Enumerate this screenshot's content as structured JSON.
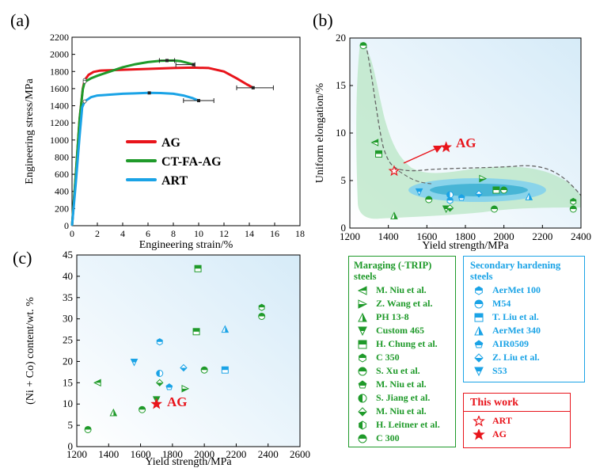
{
  "colors": {
    "red": "#e8141b",
    "green": "#1f9a2a",
    "blue": "#1aa3e6",
    "ltgreen": "#58c15e",
    "bg": "#ffffff"
  },
  "panel_labels": {
    "a": "(a)",
    "b": "(b)",
    "c": "(c)"
  },
  "chart_data": [
    {
      "id": "a",
      "type": "line",
      "xlabel": "Engineering strain/%",
      "ylabel": "Engineering stress/MPa",
      "xlim": [
        0,
        18
      ],
      "ylim": [
        0,
        2200
      ],
      "xticks": [
        0,
        2,
        4,
        6,
        8,
        10,
        12,
        14,
        16,
        18
      ],
      "yticks": [
        0,
        200,
        400,
        600,
        800,
        1000,
        1200,
        1400,
        1600,
        1800,
        2000,
        2200
      ],
      "series": [
        {
          "name": "AG",
          "color": "#e8141b",
          "x": [
            0,
            0.3,
            0.6,
            0.85,
            1.0,
            1.3,
            1.7,
            2.2,
            3,
            4,
            6,
            8,
            9.5,
            10.8,
            12,
            13,
            13.8,
            14.3
          ],
          "y": [
            0,
            600,
            1250,
            1600,
            1700,
            1760,
            1795,
            1810,
            1815,
            1820,
            1830,
            1840,
            1845,
            1840,
            1800,
            1720,
            1650,
            1610
          ],
          "end_x": 14.3,
          "end_y": 1610,
          "err_x": [
            13,
            15.9
          ]
        },
        {
          "name": "CT-FA-AG",
          "color": "#1f9a2a",
          "x": [
            0,
            0.3,
            0.6,
            0.85,
            1.0,
            1.5,
            2,
            3,
            4,
            5,
            6,
            7,
            8,
            8.6,
            9,
            9.6
          ],
          "y": [
            0,
            600,
            1250,
            1590,
            1680,
            1720,
            1750,
            1800,
            1850,
            1885,
            1910,
            1925,
            1928,
            1920,
            1905,
            1880
          ],
          "end_x": 9.6,
          "end_y": 1880,
          "err_x": [
            8.2,
            9.7
          ],
          "mark": [
            7.5,
            1928
          ],
          "mark_err": [
            6.9,
            8.1
          ]
        },
        {
          "name": "ART",
          "color": "#1aa3e6",
          "x": [
            0,
            0.3,
            0.6,
            0.8,
            1.0,
            1.5,
            2,
            3,
            4,
            5,
            6,
            7,
            8,
            8.8,
            9.5,
            10
          ],
          "y": [
            0,
            500,
            1050,
            1380,
            1450,
            1500,
            1520,
            1530,
            1540,
            1545,
            1550,
            1548,
            1540,
            1520,
            1490,
            1460
          ],
          "end_x": 10,
          "end_y": 1460,
          "err_x": [
            8.8,
            11.2
          ],
          "mark": [
            6.1,
            1550
          ]
        }
      ]
    },
    {
      "id": "b",
      "type": "scatter",
      "xlabel": "Yield strength/MPa",
      "ylabel": "Uniform elongation/%",
      "xlim": [
        1200,
        2400
      ],
      "ylim": [
        0,
        20
      ],
      "xticks": [
        1200,
        1400,
        1600,
        1800,
        2000,
        2200,
        2400
      ],
      "yticks": [
        0,
        5,
        10,
        15,
        20
      ],
      "annotation": "AG",
      "ag": [
        1700,
        8.5
      ],
      "art": [
        1430,
        6
      ],
      "points": [
        {
          "x": 1270,
          "y": 19.2,
          "m": "half-circle",
          "c": "green"
        },
        {
          "x": 1330,
          "y": 9,
          "m": "tri-left",
          "c": "green"
        },
        {
          "x": 1350,
          "y": 7.8,
          "m": "square-half",
          "c": "green"
        },
        {
          "x": 1430,
          "y": 1.3,
          "m": "tri-up",
          "c": "green"
        },
        {
          "x": 1560,
          "y": 3.8,
          "m": "tri-down",
          "c": "blue"
        },
        {
          "x": 1610,
          "y": 3,
          "m": "half-circle",
          "c": "green"
        },
        {
          "x": 1700,
          "y": 2,
          "m": "tri-down",
          "c": "green"
        },
        {
          "x": 1720,
          "y": 2.1,
          "m": "diamond",
          "c": "green"
        },
        {
          "x": 1720,
          "y": 3.5,
          "m": "circle-half",
          "c": "blue"
        },
        {
          "x": 1720,
          "y": 2.9,
          "m": "hexagon",
          "c": "blue"
        },
        {
          "x": 1780,
          "y": 3.2,
          "m": "pentagon",
          "c": "blue"
        },
        {
          "x": 1870,
          "y": 3.6,
          "m": "diamond",
          "c": "blue"
        },
        {
          "x": 1890,
          "y": 5.2,
          "m": "tri-right",
          "c": "green"
        },
        {
          "x": 1950,
          "y": 2,
          "m": "half-circle",
          "c": "green"
        },
        {
          "x": 1960,
          "y": 4,
          "m": "square-half",
          "c": "green"
        },
        {
          "x": 2000,
          "y": 4,
          "m": "half-circle",
          "c": "green"
        },
        {
          "x": 2130,
          "y": 3.3,
          "m": "tri-up",
          "c": "blue"
        },
        {
          "x": 2360,
          "y": 2.8,
          "m": "hexagon",
          "c": "green"
        },
        {
          "x": 2360,
          "y": 2,
          "m": "half-circle",
          "c": "green"
        }
      ]
    },
    {
      "id": "c",
      "type": "scatter",
      "xlabel": "Yield strength/MPa",
      "ylabel": "(Ni + Co) content/wt. %",
      "xlim": [
        1200,
        2600
      ],
      "ylim": [
        0,
        45
      ],
      "xticks": [
        1200,
        1400,
        1600,
        1800,
        2000,
        2200,
        2400,
        2600
      ],
      "yticks": [
        0,
        5,
        10,
        15,
        20,
        25,
        30,
        35,
        40,
        45
      ],
      "annotation": "AG",
      "ag": [
        1700,
        10
      ],
      "points": [
        {
          "x": 1270,
          "y": 4,
          "m": "half-circle",
          "c": "green"
        },
        {
          "x": 1330,
          "y": 15,
          "m": "tri-left",
          "c": "green"
        },
        {
          "x": 1430,
          "y": 8,
          "m": "tri-up",
          "c": "green"
        },
        {
          "x": 1560,
          "y": 19.8,
          "m": "tri-down",
          "c": "blue"
        },
        {
          "x": 1610,
          "y": 8.7,
          "m": "half-circle",
          "c": "green"
        },
        {
          "x": 1700,
          "y": 11,
          "m": "tri-down",
          "c": "green"
        },
        {
          "x": 1720,
          "y": 15,
          "m": "diamond",
          "c": "green"
        },
        {
          "x": 1720,
          "y": 17.2,
          "m": "circle-half",
          "c": "blue"
        },
        {
          "x": 1720,
          "y": 24.6,
          "m": "hexagon",
          "c": "blue"
        },
        {
          "x": 1780,
          "y": 14,
          "m": "pentagon",
          "c": "blue"
        },
        {
          "x": 1870,
          "y": 18.5,
          "m": "diamond",
          "c": "blue"
        },
        {
          "x": 1880,
          "y": 13.6,
          "m": "tri-right",
          "c": "green"
        },
        {
          "x": 1950,
          "y": 27,
          "m": "square-half",
          "c": "green"
        },
        {
          "x": 1960,
          "y": 41.8,
          "m": "square-half",
          "c": "green"
        },
        {
          "x": 2000,
          "y": 18,
          "m": "half-circle",
          "c": "green"
        },
        {
          "x": 2130,
          "y": 18,
          "m": "square-half",
          "c": "blue"
        },
        {
          "x": 2130,
          "y": 27.6,
          "m": "tri-up",
          "c": "blue"
        },
        {
          "x": 2360,
          "y": 32.7,
          "m": "hexagon",
          "c": "green"
        },
        {
          "x": 2360,
          "y": 30.6,
          "m": "half-circle",
          "c": "green"
        }
      ]
    }
  ],
  "legend_a": [
    {
      "label": "AG",
      "color": "#e8141b"
    },
    {
      "label": "CT-FA-AG",
      "color": "#1f9a2a"
    },
    {
      "label": "ART",
      "color": "#1aa3e6"
    }
  ],
  "legend_maraging": {
    "title_1": "Maraging (-TRIP)",
    "title_2": "steels",
    "items": [
      {
        "label": "M. Niu et al.",
        "m": "tri-left"
      },
      {
        "label": "Z. Wang et al.",
        "m": "tri-right"
      },
      {
        "label": "PH 13-8",
        "m": "tri-up"
      },
      {
        "label": "Custom 465",
        "m": "tri-down"
      },
      {
        "label": "H. Chung et al.",
        "m": "square-half"
      },
      {
        "label": "C 350",
        "m": "hexagon"
      },
      {
        "label": "S. Xu et al.",
        "m": "half-circle"
      },
      {
        "label": "M. Niu et al.",
        "m": "pentagon"
      },
      {
        "label": "S. Jiang et al.",
        "m": "circle-half"
      },
      {
        "label": "M. Niu et al.",
        "m": "diamond"
      },
      {
        "label": "H. Leitner et al.",
        "m": "hex-left"
      },
      {
        "label": "C 300",
        "m": "half-circle"
      }
    ]
  },
  "legend_secondary": {
    "title_1": "Secondary hardening",
    "title_2": "steels",
    "items": [
      {
        "label": "AerMet 100",
        "m": "hexagon"
      },
      {
        "label": "M54",
        "m": "half-circle"
      },
      {
        "label": "T. Liu et al.",
        "m": "square-half"
      },
      {
        "label": "AerMet 340",
        "m": "tri-up"
      },
      {
        "label": "AIR0509",
        "m": "pentagon"
      },
      {
        "label": "Z. Liu et al.",
        "m": "diamond"
      },
      {
        "label": "S53",
        "m": "tri-down"
      }
    ]
  },
  "legend_work": {
    "title": "This work",
    "items": [
      {
        "label": "ART",
        "m": "star-open"
      },
      {
        "label": "AG",
        "m": "star-filled"
      }
    ]
  }
}
